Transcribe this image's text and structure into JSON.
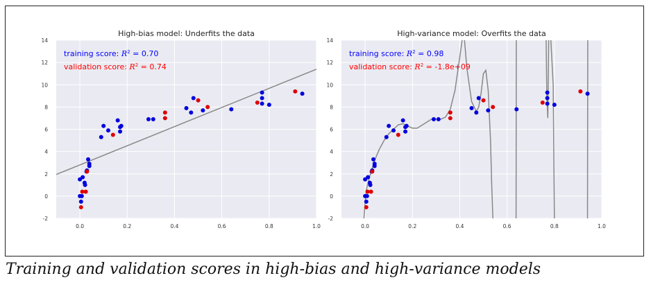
{
  "caption": "Training and validation scores in high-bias and high-variance models",
  "chart_data": [
    {
      "type": "scatter",
      "title": "High-bias model: Underfits the data",
      "xlim": [
        -0.1,
        1.0
      ],
      "ylim": [
        -2,
        14
      ],
      "xticks": [
        0.0,
        0.2,
        0.4,
        0.6,
        0.8,
        1.0
      ],
      "xtick_labels": [
        "0.0",
        "0.2",
        "0.4",
        "0.6",
        "0.8",
        "1.0"
      ],
      "yticks": [
        -2,
        0,
        2,
        4,
        6,
        8,
        10,
        12,
        14
      ],
      "ytick_labels": [
        "-2",
        "0",
        "2",
        "4",
        "6",
        "8",
        "10",
        "12",
        "14"
      ],
      "grid": true,
      "background": "#eaeaf2",
      "annotations": [
        {
          "prefix": "training score: ",
          "r2": "R",
          "suffix": " = 0.70",
          "color": "#0000ff"
        },
        {
          "prefix": "validation score: ",
          "r2": "R",
          "suffix": " = 0.74",
          "color": "#ff0000"
        }
      ],
      "series": [
        {
          "color": "#0000dd",
          "points": [
            [
              0.0,
              0.0
            ],
            [
              0.005,
              -0.5
            ],
            [
              0.008,
              0.0
            ],
            [
              0.0,
              1.5
            ],
            [
              0.012,
              1.7
            ],
            [
              0.02,
              1.2
            ],
            [
              0.022,
              1.0
            ],
            [
              0.028,
              2.2
            ],
            [
              0.03,
              2.3
            ],
            [
              0.035,
              3.3
            ],
            [
              0.04,
              2.7
            ],
            [
              0.04,
              2.9
            ],
            [
              0.09,
              5.3
            ],
            [
              0.1,
              6.3
            ],
            [
              0.12,
              5.9
            ],
            [
              0.16,
              6.8
            ],
            [
              0.17,
              5.8
            ],
            [
              0.17,
              6.2
            ],
            [
              0.175,
              6.3
            ],
            [
              0.29,
              6.9
            ],
            [
              0.31,
              6.9
            ],
            [
              0.45,
              7.9
            ],
            [
              0.47,
              7.5
            ],
            [
              0.48,
              8.8
            ],
            [
              0.52,
              7.7
            ],
            [
              0.64,
              7.8
            ],
            [
              0.77,
              9.3
            ],
            [
              0.77,
              8.8
            ],
            [
              0.77,
              8.3
            ],
            [
              0.8,
              8.2
            ],
            [
              0.94,
              9.2
            ]
          ]
        },
        {
          "color": "#dd0000",
          "points": [
            [
              0.005,
              -1.0
            ],
            [
              0.01,
              0.4
            ],
            [
              0.025,
              0.4
            ],
            [
              0.03,
              2.2
            ],
            [
              0.14,
              5.5
            ],
            [
              0.36,
              7.5
            ],
            [
              0.36,
              7.0
            ],
            [
              0.5,
              8.6
            ],
            [
              0.54,
              8.0
            ],
            [
              0.75,
              8.4
            ],
            [
              0.91,
              9.4
            ]
          ]
        }
      ],
      "fit": {
        "type": "linear",
        "intercept": 2.8,
        "slope": 8.6,
        "color": "#888888"
      }
    },
    {
      "type": "scatter",
      "title": "High-variance model: Overfits the data",
      "xlim": [
        -0.1,
        1.0
      ],
      "ylim": [
        -2,
        14
      ],
      "xticks": [
        0.0,
        0.2,
        0.4,
        0.6,
        0.8,
        1.0
      ],
      "xtick_labels": [
        "0.0",
        "0.2",
        "0.4",
        "0.6",
        "0.8",
        "1.0"
      ],
      "yticks": [
        -2,
        0,
        2,
        4,
        6,
        8,
        10,
        12,
        14
      ],
      "ytick_labels": [
        "-2",
        "0",
        "2",
        "4",
        "6",
        "8",
        "10",
        "12",
        "14"
      ],
      "grid": true,
      "background": "#eaeaf2",
      "annotations": [
        {
          "prefix": "training score: ",
          "r2": "R",
          "suffix": " = 0.98",
          "color": "#0000ff"
        },
        {
          "prefix": "validation score: ",
          "r2": "R",
          "suffix": " = -1.8e+09",
          "color": "#ff0000"
        }
      ],
      "series": [
        {
          "color": "#0000dd",
          "points": [
            [
              0.0,
              0.0
            ],
            [
              0.005,
              -0.5
            ],
            [
              0.008,
              0.0
            ],
            [
              0.0,
              1.5
            ],
            [
              0.012,
              1.7
            ],
            [
              0.02,
              1.2
            ],
            [
              0.022,
              1.0
            ],
            [
              0.028,
              2.2
            ],
            [
              0.03,
              2.3
            ],
            [
              0.035,
              3.3
            ],
            [
              0.04,
              2.7
            ],
            [
              0.04,
              2.9
            ],
            [
              0.09,
              5.3
            ],
            [
              0.1,
              6.3
            ],
            [
              0.12,
              5.9
            ],
            [
              0.16,
              6.8
            ],
            [
              0.17,
              5.8
            ],
            [
              0.17,
              6.2
            ],
            [
              0.175,
              6.3
            ],
            [
              0.29,
              6.9
            ],
            [
              0.31,
              6.9
            ],
            [
              0.45,
              7.9
            ],
            [
              0.47,
              7.5
            ],
            [
              0.48,
              8.8
            ],
            [
              0.52,
              7.7
            ],
            [
              0.64,
              7.8
            ],
            [
              0.77,
              9.3
            ],
            [
              0.77,
              8.8
            ],
            [
              0.77,
              8.3
            ],
            [
              0.8,
              8.2
            ],
            [
              0.94,
              9.2
            ]
          ]
        },
        {
          "color": "#dd0000",
          "points": [
            [
              0.005,
              -1.0
            ],
            [
              0.01,
              0.4
            ],
            [
              0.025,
              0.4
            ],
            [
              0.03,
              2.2
            ],
            [
              0.14,
              5.5
            ],
            [
              0.36,
              7.5
            ],
            [
              0.36,
              7.0
            ],
            [
              0.5,
              8.6
            ],
            [
              0.54,
              8.0
            ],
            [
              0.75,
              8.4
            ],
            [
              0.91,
              9.4
            ]
          ]
        }
      ],
      "fit": {
        "type": "polyline",
        "color": "#888888",
        "curves": [
          [
            [
              -0.005,
              -2.0
            ],
            [
              0.0,
              -0.6
            ],
            [
              0.005,
              0.5
            ],
            [
              0.01,
              1.0
            ],
            [
              0.02,
              1.8
            ],
            [
              0.03,
              2.5
            ],
            [
              0.04,
              3.2
            ],
            [
              0.06,
              4.2
            ],
            [
              0.08,
              5.0
            ],
            [
              0.1,
              5.6
            ],
            [
              0.12,
              6.0
            ],
            [
              0.14,
              6.4
            ],
            [
              0.16,
              6.5
            ],
            [
              0.18,
              6.3
            ],
            [
              0.2,
              6.1
            ],
            [
              0.22,
              6.1
            ],
            [
              0.25,
              6.5
            ],
            [
              0.28,
              6.9
            ],
            [
              0.3,
              6.9
            ],
            [
              0.32,
              6.9
            ],
            [
              0.34,
              7.1
            ],
            [
              0.36,
              7.8
            ],
            [
              0.38,
              9.5
            ],
            [
              0.4,
              12.5
            ],
            [
              0.41,
              14.0
            ]
          ],
          [
            [
              0.42,
              14.0
            ],
            [
              0.43,
              11.5
            ],
            [
              0.45,
              8.5
            ],
            [
              0.47,
              7.6
            ],
            [
              0.48,
              8.0
            ],
            [
              0.49,
              9.2
            ],
            [
              0.5,
              11.0
            ],
            [
              0.51,
              11.3
            ],
            [
              0.52,
              9.5
            ],
            [
              0.53,
              5.0
            ],
            [
              0.535,
              1.0
            ],
            [
              0.54,
              -2.0
            ]
          ],
          [
            [
              0.638,
              -2.0
            ],
            [
              0.639,
              14.0
            ]
          ],
          [
            [
              0.765,
              14.0
            ],
            [
              0.768,
              9.0
            ],
            [
              0.772,
              7.0
            ],
            [
              0.776,
              14.0
            ]
          ],
          [
            [
              0.785,
              14.0
            ],
            [
              0.79,
              12.0
            ],
            [
              0.795,
              10.0
            ],
            [
              0.8,
              -2.0
            ]
          ],
          [
            [
              0.94,
              -2.0
            ],
            [
              0.941,
              14.0
            ]
          ]
        ]
      }
    }
  ]
}
